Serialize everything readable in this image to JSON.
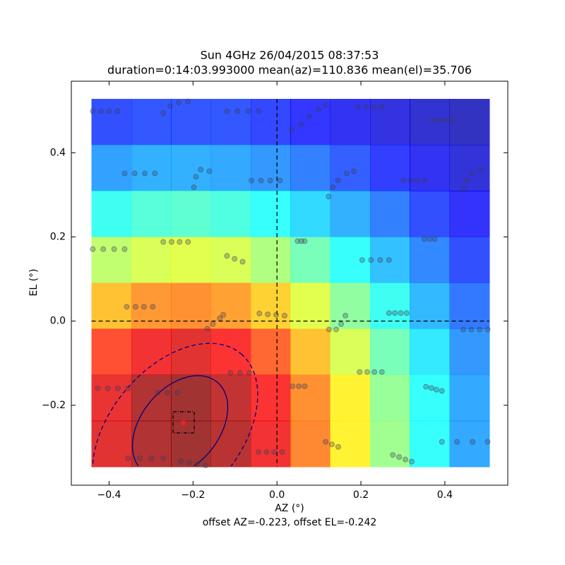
{
  "chart_data": {
    "type": "heatmap",
    "title": "Sun 4GHz 26/04/2015 08:37:53",
    "subtitle": "duration=0:14:03.993000 mean(az)=110.836 mean(el)=35.706",
    "x_label": "AZ (°)",
    "y_label": "EL (°)",
    "annotation": "offset AZ=-0.223, offset EL=-0.242",
    "xlim": [
      -0.49,
      0.55
    ],
    "ylim": [
      -0.39,
      0.57
    ],
    "xticks": [
      {
        "value": -0.4,
        "label": "−0.4"
      },
      {
        "value": -0.2,
        "label": "−0.2"
      },
      {
        "value": 0,
        "label": "0.0"
      },
      0.2,
      0.4
    ],
    "yticks": [
      {
        "value": -0.2,
        "label": "−0.2"
      },
      {
        "value": 0,
        "label": "0.0"
      },
      0.2,
      0.4
    ],
    "heatmap": {
      "colormap": "jet",
      "extent_x": [
        -0.442,
        0.506
      ],
      "extent_y": [
        -0.346,
        0.528
      ],
      "values": [
        [
          0.16,
          0.17,
          0.17,
          0.17,
          0.15,
          0.13,
          0.11,
          0.09,
          0.07,
          0.05
        ],
        [
          0.26,
          0.28,
          0.28,
          0.27,
          0.25,
          0.22,
          0.18,
          0.14,
          0.11,
          0.08
        ],
        [
          0.39,
          0.42,
          0.43,
          0.41,
          0.38,
          0.33,
          0.28,
          0.22,
          0.16,
          0.12
        ],
        [
          0.55,
          0.58,
          0.59,
          0.58,
          0.53,
          0.46,
          0.38,
          0.3,
          0.23,
          0.16
        ],
        [
          0.7,
          0.75,
          0.76,
          0.74,
          0.68,
          0.59,
          0.49,
          0.39,
          0.29,
          0.21
        ],
        [
          0.84,
          0.89,
          0.91,
          0.88,
          0.81,
          0.7,
          0.58,
          0.46,
          0.35,
          0.25
        ],
        [
          0.9,
          0.97,
          0.99,
          0.95,
          0.88,
          0.76,
          0.64,
          0.5,
          0.38,
          0.27
        ],
        [
          0.91,
          0.97,
          0.99,
          0.96,
          0.89,
          0.77,
          0.64,
          0.51,
          0.38,
          0.27
        ]
      ]
    },
    "hlines": [
      0
    ],
    "vlines": [
      0
    ],
    "offset": {
      "az": -0.223,
      "el": -0.242,
      "color": "#ff2020"
    },
    "points": {
      "color": "#3a3a5a",
      "x": [
        -0.439,
        -0.419,
        -0.4,
        -0.38,
        -0.271,
        -0.254,
        -0.234,
        -0.212,
        -0.119,
        -0.094,
        -0.069,
        -0.044,
        0.035,
        0.057,
        0.077,
        0.099,
        0.116,
        0.193,
        0.212,
        0.231,
        0.25,
        0.371,
        0.386,
        0.4,
        0.415,
        -0.363,
        -0.339,
        -0.315,
        -0.291,
        -0.198,
        -0.193,
        -0.182,
        -0.161,
        -0.061,
        -0.038,
        -0.016,
        0.007,
        0.123,
        0.133,
        0.146,
        0.166,
        0.183,
        0.301,
        0.318,
        0.334,
        0.351,
        0.444,
        0.452,
        0.466,
        0.486,
        -0.439,
        -0.414,
        -0.388,
        -0.363,
        -0.271,
        -0.251,
        -0.232,
        -0.212,
        -0.119,
        -0.101,
        -0.082,
        0.049,
        0.058,
        0.066,
        0.203,
        0.224,
        0.246,
        0.267,
        0.351,
        0.364,
        0.376,
        -0.358,
        -0.337,
        -0.317,
        -0.296,
        -0.166,
        -0.153,
        -0.136,
        -0.128,
        -0.042,
        -0.022,
        -0.002,
        0.018,
        0.124,
        0.141,
        0.153,
        0.163,
        0.267,
        0.281,
        0.295,
        0.309,
        0.444,
        0.463,
        0.483,
        0.502,
        -0.427,
        -0.403,
        -0.379,
        -0.355,
        -0.284,
        -0.261,
        -0.237,
        -0.111,
        -0.088,
        -0.066,
        0.037,
        0.052,
        0.066,
        0.197,
        0.215,
        0.232,
        0.25,
        0.355,
        0.368,
        0.38,
        0.393,
        -0.355,
        -0.327,
        -0.299,
        -0.271,
        -0.229,
        -0.209,
        -0.19,
        -0.17,
        -0.044,
        -0.025,
        -0.007,
        0.012,
        0.116,
        0.131,
        0.146,
        0.276,
        0.291,
        0.306,
        0.321,
        0.393,
        0.429,
        0.466,
        0.502
      ],
      "y": [
        0.499,
        0.499,
        0.499,
        0.499,
        0.494,
        0.511,
        0.519,
        0.522,
        0.499,
        0.499,
        0.499,
        0.499,
        0.455,
        0.467,
        0.486,
        0.503,
        0.514,
        0.509,
        0.509,
        0.509,
        0.509,
        0.477,
        0.477,
        0.477,
        0.477,
        0.351,
        0.351,
        0.351,
        0.351,
        0.318,
        0.343,
        0.36,
        0.356,
        0.334,
        0.334,
        0.334,
        0.334,
        0.296,
        0.318,
        0.334,
        0.351,
        0.356,
        0.334,
        0.334,
        0.334,
        0.334,
        0.313,
        0.334,
        0.351,
        0.36,
        0.171,
        0.171,
        0.171,
        0.171,
        0.188,
        0.188,
        0.188,
        0.188,
        0.155,
        0.148,
        0.141,
        0.19,
        0.19,
        0.19,
        0.145,
        0.145,
        0.145,
        0.145,
        0.195,
        0.195,
        0.195,
        0.034,
        0.034,
        0.034,
        0.034,
        -0.018,
        -0.007,
        0.007,
        0.015,
        0.018,
        0.016,
        0.015,
        0.013,
        -0.02,
        -0.02,
        -0.007,
        0.013,
        0.019,
        0.019,
        0.019,
        0.019,
        -0.02,
        -0.02,
        -0.02,
        -0.02,
        -0.16,
        -0.16,
        -0.16,
        -0.16,
        -0.17,
        -0.17,
        -0.17,
        -0.123,
        -0.123,
        -0.123,
        -0.155,
        -0.155,
        -0.155,
        -0.121,
        -0.121,
        -0.121,
        -0.121,
        -0.156,
        -0.159,
        -0.163,
        -0.166,
        -0.326,
        -0.326,
        -0.326,
        -0.326,
        -0.333,
        -0.336,
        -0.34,
        -0.343,
        -0.311,
        -0.311,
        -0.311,
        -0.311,
        -0.287,
        -0.293,
        -0.299,
        -0.318,
        -0.323,
        -0.329,
        -0.334,
        -0.287,
        -0.287,
        -0.287,
        -0.287
      ]
    }
  }
}
